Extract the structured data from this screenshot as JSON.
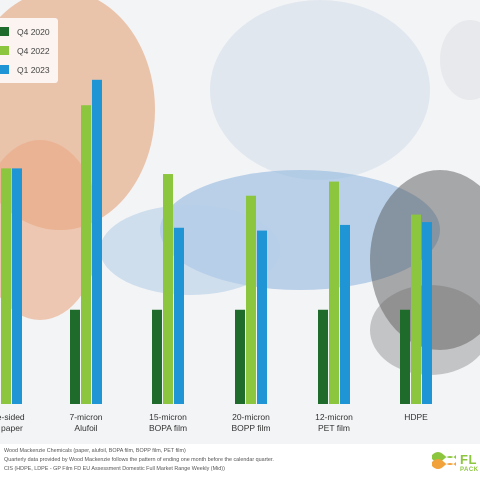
{
  "colors": {
    "q4_2020": "#1e6b2b",
    "q4_2022": "#8cc63e",
    "q1_2023": "#1f95d6"
  },
  "chart_data": {
    "type": "bar",
    "title": "",
    "xlabel": "",
    "ylabel": "",
    "categories": [
      [
        "one-sided",
        "ed paper"
      ],
      [
        "7-micron",
        "Alufoil"
      ],
      [
        "15-micron",
        "BOPA film"
      ],
      [
        "20-micron",
        "BOPP film"
      ],
      [
        "12-micron",
        "PET film"
      ],
      [
        "HDPE"
      ]
    ],
    "series": [
      {
        "name": "Q4 2020",
        "values": [
          100,
          100,
          100,
          100,
          100,
          100
        ]
      },
      {
        "name": "Q4 2022",
        "values": [
          250,
          317,
          244,
          221,
          236,
          201
        ]
      },
      {
        "name": "Q1 2023",
        "values": [
          250,
          344,
          187,
          184,
          190,
          193
        ]
      }
    ],
    "ylim": [
      0,
      365
    ],
    "grid": false,
    "legend": "top-left"
  },
  "footer": {
    "sources": [
      "Wood Mackenzie Chemicals (paper, alufoil, BOPA film, BOPP film, PET film)",
      "Quarterly data provided by Wood Mackenzie follows the pattern of ending one month before the calendar quarter.",
      "CIS (HDPE, LDPE - GP Film FD EU Assessment Domestic Full Market Range Weekly (Mid))"
    ],
    "logo_text": "FL",
    "logo_sub": "PACK"
  }
}
